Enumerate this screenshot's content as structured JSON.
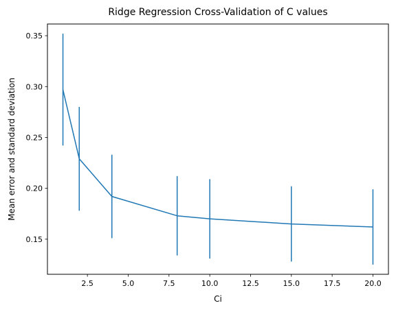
{
  "chart_data": {
    "type": "line",
    "title": "Ridge Regression Cross-Validation of C values",
    "xlabel": "Ci",
    "ylabel": "Mean error and standard deviation",
    "xlim": [
      0.05,
      20.95
    ],
    "ylim": [
      0.1155,
      0.3615
    ],
    "xticks": [
      2.5,
      5.0,
      7.5,
      10.0,
      12.5,
      15.0,
      17.5,
      20.0
    ],
    "xtick_labels": [
      "2.5",
      "5.0",
      "7.5",
      "10.0",
      "12.5",
      "15.0",
      "17.5",
      "20.0"
    ],
    "yticks": [
      0.15,
      0.2,
      0.25,
      0.3,
      0.35
    ],
    "ytick_labels": [
      "0.15",
      "0.20",
      "0.25",
      "0.30",
      "0.35"
    ],
    "grid": false,
    "series": [
      {
        "color": "#1f77b4",
        "x": [
          1,
          2,
          4,
          8,
          10,
          15,
          20
        ],
        "y": [
          0.297,
          0.229,
          0.192,
          0.173,
          0.17,
          0.165,
          0.162
        ],
        "err": [
          0.055,
          0.051,
          0.041,
          0.039,
          0.039,
          0.037,
          0.037
        ]
      }
    ]
  }
}
